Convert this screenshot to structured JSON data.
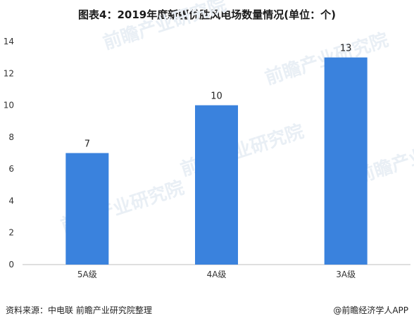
{
  "title": "图表4：2019年度新疆优胜风电场数量情况(单位：个)",
  "chart_data": {
    "type": "bar",
    "categories": [
      "5A级",
      "4A级",
      "3A级"
    ],
    "values": [
      7,
      10,
      13
    ],
    "ylim": [
      0,
      14
    ],
    "yticks": [
      0,
      2,
      4,
      6,
      8,
      10,
      12,
      14
    ],
    "grid": false,
    "legend": "none",
    "bar_color": "#3a82dd",
    "data_labels": [
      "7",
      "10",
      "13"
    ]
  },
  "watermark": "前瞻产业研究院",
  "footer": {
    "source": "资料来源：中电联 前瞻产业研究院整理",
    "brand": "@前瞻经济学人APP"
  }
}
